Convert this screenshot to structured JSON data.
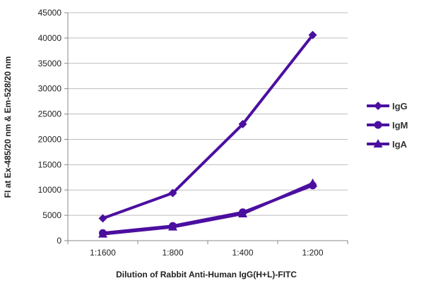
{
  "chart_data": {
    "type": "line",
    "title": "",
    "xlabel": "Dilution of Rabbit Anti-Human IgG(H+L)-FITC",
    "ylabel": "FI at Ex-485/20 nm & Em-528/20 nm",
    "categories": [
      "1:1600",
      "1:800",
      "1:400",
      "1:200"
    ],
    "ylim": [
      0,
      45000
    ],
    "yticks": [
      0,
      5000,
      10000,
      15000,
      20000,
      25000,
      30000,
      35000,
      40000,
      45000
    ],
    "grid": true,
    "legend_position": "right",
    "color": "#4b0fa0",
    "series": [
      {
        "name": "IgG",
        "marker": "diamond",
        "values": [
          4400,
          9400,
          23000,
          40600
        ]
      },
      {
        "name": "IgM",
        "marker": "circle",
        "values": [
          1500,
          2900,
          5600,
          10900
        ]
      },
      {
        "name": "IgA",
        "marker": "triangle",
        "values": [
          1300,
          2700,
          5300,
          11300
        ]
      }
    ]
  }
}
